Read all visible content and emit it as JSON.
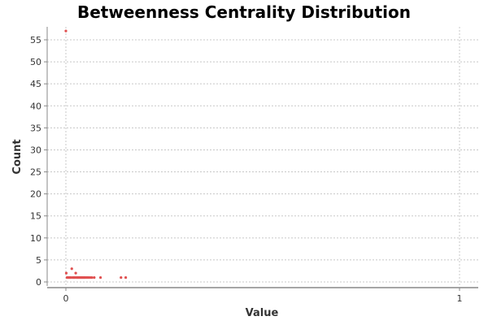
{
  "chart_data": {
    "type": "scatter",
    "title": "Betweenness Centrality Distribution",
    "xlabel": "Value",
    "ylabel": "Count",
    "xlim": [
      0,
      1
    ],
    "ylim": [
      0,
      57
    ],
    "x_ticks": [
      0,
      1
    ],
    "y_ticks": [
      0,
      5,
      10,
      15,
      20,
      25,
      30,
      35,
      40,
      45,
      50,
      55
    ],
    "grid": true,
    "legend": false,
    "point_color": "#e05050",
    "grid_color": "#c8c8c8",
    "axis_color": "#888888",
    "series": [
      {
        "points": [
          [
            0.0,
            57
          ],
          [
            0.001,
            2
          ],
          [
            0.003,
            1
          ],
          [
            0.005,
            1
          ],
          [
            0.007,
            1
          ],
          [
            0.009,
            1
          ],
          [
            0.011,
            1
          ],
          [
            0.013,
            1
          ],
          [
            0.015,
            3
          ],
          [
            0.017,
            1
          ],
          [
            0.019,
            1
          ],
          [
            0.021,
            1
          ],
          [
            0.023,
            1
          ],
          [
            0.025,
            2
          ],
          [
            0.027,
            1
          ],
          [
            0.029,
            1
          ],
          [
            0.031,
            1
          ],
          [
            0.033,
            1
          ],
          [
            0.035,
            1
          ],
          [
            0.037,
            1
          ],
          [
            0.039,
            1
          ],
          [
            0.041,
            1
          ],
          [
            0.043,
            1
          ],
          [
            0.045,
            1
          ],
          [
            0.047,
            1
          ],
          [
            0.049,
            1
          ],
          [
            0.052,
            1
          ],
          [
            0.055,
            1
          ],
          [
            0.058,
            1
          ],
          [
            0.062,
            1
          ],
          [
            0.066,
            1
          ],
          [
            0.072,
            1
          ],
          [
            0.088,
            1
          ],
          [
            0.14,
            1
          ],
          [
            0.152,
            1
          ]
        ]
      }
    ]
  }
}
